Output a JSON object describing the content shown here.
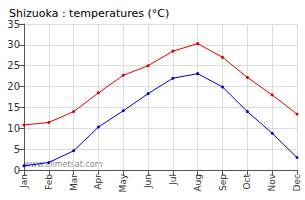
{
  "chart_data": {
    "type": "line",
    "title": "Shizuoka : temperatures (°C)",
    "categories": [
      "Jan",
      "Feb",
      "Mar",
      "Apr",
      "May",
      "Jun",
      "Jul",
      "Aug",
      "Sep",
      "Oct",
      "Nov",
      "Dec"
    ],
    "series": [
      {
        "color": "#e00000",
        "marker": "circle",
        "values": [
          10.8,
          11.4,
          14,
          18.5,
          22.7,
          25,
          28.5,
          30.3,
          27,
          22.2,
          18,
          13.4
        ]
      },
      {
        "color": "#0000c8",
        "marker": "circle",
        "values": [
          1,
          1.8,
          4.6,
          10.3,
          14.2,
          18.3,
          22,
          23.1,
          19.9,
          14,
          8.8,
          3
        ]
      }
    ],
    "ylim": [
      0,
      35
    ],
    "yticks": [
      0,
      5,
      10,
      15,
      20,
      25,
      30,
      35
    ],
    "grid": true,
    "annotations": [
      {
        "text": "www.allmetsat.com"
      }
    ]
  }
}
